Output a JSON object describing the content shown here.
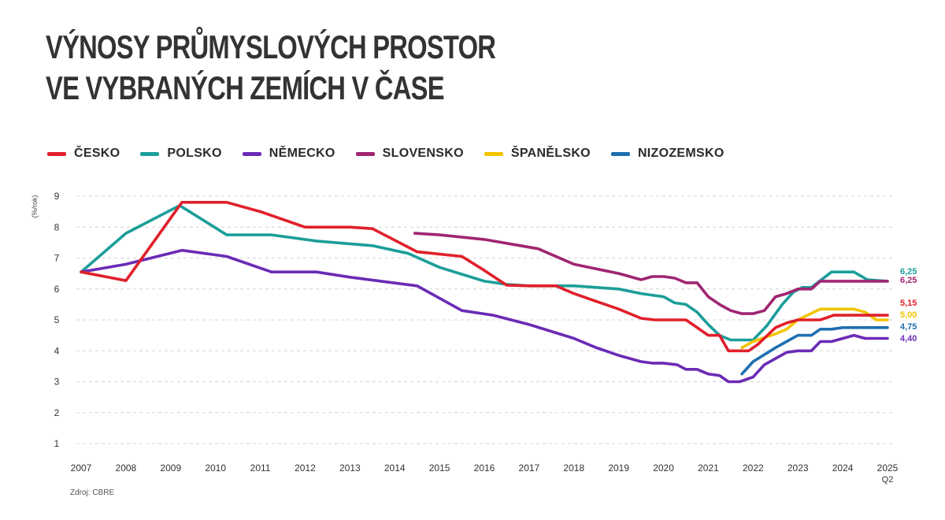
{
  "title": {
    "line1": "VÝNOSY PRŮMYSLOVÝCH PROSTOR",
    "line2": "VE VYBRANÝCH ZEMÍCH V ČASE"
  },
  "source": "Zdroj: CBRE",
  "chart_data": {
    "type": "line",
    "ylabel": "(%/rok)",
    "ylim": [
      1,
      9
    ],
    "yticks": [
      "1",
      "2",
      "3",
      "4",
      "5",
      "6",
      "7",
      "8",
      "9"
    ],
    "xlim": [
      2007,
      2025
    ],
    "xticks": [
      "2007",
      "2008",
      "2009",
      "2010",
      "2011",
      "2012",
      "2013",
      "2014",
      "2015",
      "2016",
      "2017",
      "2018",
      "2019",
      "2020",
      "2021",
      "2022",
      "2023",
      "2024",
      "2025"
    ],
    "xtick_sub": "Q2",
    "grid": "horizontal-dashed",
    "legend": "top",
    "series": [
      {
        "name": "ČESKO",
        "color": "#e0202b",
        "end_label": "5,15",
        "points": [
          [
            2007,
            6.55
          ],
          [
            2008,
            6.27
          ],
          [
            2009.25,
            8.8
          ],
          [
            2010,
            8.8
          ],
          [
            2010.25,
            8.8
          ],
          [
            2011,
            8.5
          ],
          [
            2012,
            8.0
          ],
          [
            2013,
            8.0
          ],
          [
            2013.5,
            7.95
          ],
          [
            2014.5,
            7.2
          ],
          [
            2015.5,
            7.05
          ],
          [
            2016,
            6.6
          ],
          [
            2016.5,
            6.12
          ],
          [
            2017,
            6.1
          ],
          [
            2017.6,
            6.1
          ],
          [
            2018,
            5.85
          ],
          [
            2018.5,
            5.6
          ],
          [
            2019,
            5.35
          ],
          [
            2019.5,
            5.05
          ],
          [
            2019.8,
            5.0
          ],
          [
            2020.5,
            5.0
          ],
          [
            2021,
            4.5
          ],
          [
            2021.25,
            4.5
          ],
          [
            2021.45,
            4.0
          ],
          [
            2021.9,
            4.0
          ],
          [
            2022.1,
            4.2
          ],
          [
            2022.5,
            4.75
          ],
          [
            2022.75,
            4.9
          ],
          [
            2023,
            5.0
          ],
          [
            2023.5,
            5.0
          ],
          [
            2023.8,
            5.15
          ],
          [
            2025,
            5.15
          ]
        ]
      },
      {
        "name": "POLSKO",
        "color": "#1b9e9a",
        "end_label": "6,25",
        "points": [
          [
            2007,
            6.55
          ],
          [
            2008,
            7.8
          ],
          [
            2009.2,
            8.7
          ],
          [
            2010.25,
            7.75
          ],
          [
            2011.25,
            7.75
          ],
          [
            2012.25,
            7.55
          ],
          [
            2013.5,
            7.4
          ],
          [
            2014.3,
            7.15
          ],
          [
            2015,
            6.7
          ],
          [
            2016,
            6.25
          ],
          [
            2016.5,
            6.15
          ],
          [
            2017,
            6.1
          ],
          [
            2018,
            6.1
          ],
          [
            2019,
            6.0
          ],
          [
            2019.5,
            5.85
          ],
          [
            2020,
            5.75
          ],
          [
            2020.25,
            5.55
          ],
          [
            2020.5,
            5.5
          ],
          [
            2020.75,
            5.25
          ],
          [
            2021,
            4.85
          ],
          [
            2021.25,
            4.5
          ],
          [
            2021.5,
            4.35
          ],
          [
            2021.75,
            4.35
          ],
          [
            2022,
            4.35
          ],
          [
            2022.3,
            4.8
          ],
          [
            2022.65,
            5.5
          ],
          [
            2022.9,
            5.9
          ],
          [
            2023.1,
            6.05
          ],
          [
            2023.3,
            6.05
          ],
          [
            2023.75,
            6.55
          ],
          [
            2024.25,
            6.55
          ],
          [
            2024.55,
            6.3
          ],
          [
            2025,
            6.25
          ]
        ]
      },
      {
        "name": "NĚMECKO",
        "color": "#6b2bb5",
        "end_label": "4,40",
        "points": [
          [
            2007,
            6.55
          ],
          [
            2008,
            6.8
          ],
          [
            2009.25,
            7.25
          ],
          [
            2010.25,
            7.05
          ],
          [
            2011.25,
            6.55
          ],
          [
            2012.25,
            6.55
          ],
          [
            2013,
            6.38
          ],
          [
            2014.5,
            6.1
          ],
          [
            2015.5,
            5.3
          ],
          [
            2016.2,
            5.15
          ],
          [
            2017,
            4.85
          ],
          [
            2018,
            4.4
          ],
          [
            2018.5,
            4.1
          ],
          [
            2019,
            3.85
          ],
          [
            2019.5,
            3.65
          ],
          [
            2019.75,
            3.6
          ],
          [
            2020,
            3.6
          ],
          [
            2020.3,
            3.55
          ],
          [
            2020.5,
            3.4
          ],
          [
            2020.75,
            3.4
          ],
          [
            2021,
            3.25
          ],
          [
            2021.25,
            3.2
          ],
          [
            2021.45,
            3.0
          ],
          [
            2021.7,
            3.0
          ],
          [
            2022,
            3.15
          ],
          [
            2022.25,
            3.55
          ],
          [
            2022.5,
            3.75
          ],
          [
            2022.75,
            3.95
          ],
          [
            2023,
            4.0
          ],
          [
            2023.3,
            4.0
          ],
          [
            2023.5,
            4.3
          ],
          [
            2023.75,
            4.3
          ],
          [
            2024.25,
            4.5
          ],
          [
            2024.5,
            4.4
          ],
          [
            2025,
            4.4
          ]
        ]
      },
      {
        "name": "SLOVENSKO",
        "color": "#a02571",
        "end_label": "6,25",
        "points": [
          [
            2014.45,
            7.8
          ],
          [
            2015,
            7.75
          ],
          [
            2016,
            7.6
          ],
          [
            2016.6,
            7.45
          ],
          [
            2017.2,
            7.3
          ],
          [
            2018,
            6.8
          ],
          [
            2019,
            6.5
          ],
          [
            2019.5,
            6.3
          ],
          [
            2019.75,
            6.4
          ],
          [
            2020,
            6.4
          ],
          [
            2020.25,
            6.35
          ],
          [
            2020.5,
            6.2
          ],
          [
            2020.75,
            6.2
          ],
          [
            2021,
            5.75
          ],
          [
            2021.25,
            5.5
          ],
          [
            2021.5,
            5.3
          ],
          [
            2021.75,
            5.2
          ],
          [
            2022,
            5.2
          ],
          [
            2022.25,
            5.3
          ],
          [
            2022.5,
            5.75
          ],
          [
            2022.75,
            5.85
          ],
          [
            2023,
            6.0
          ],
          [
            2023.3,
            6.0
          ],
          [
            2023.5,
            6.25
          ],
          [
            2025,
            6.25
          ]
        ]
      },
      {
        "name": "ŠPANĚLSKO",
        "color": "#f2c500",
        "end_label": "5,00",
        "points": [
          [
            2021.75,
            4.1
          ],
          [
            2022,
            4.3
          ],
          [
            2022.5,
            4.55
          ],
          [
            2022.75,
            4.7
          ],
          [
            2023,
            5.0
          ],
          [
            2023.5,
            5.35
          ],
          [
            2024,
            5.35
          ],
          [
            2024.25,
            5.35
          ],
          [
            2024.5,
            5.25
          ],
          [
            2024.75,
            5.0
          ],
          [
            2025,
            5.0
          ]
        ]
      },
      {
        "name": "NIZOZEMSKO",
        "color": "#1f6fb0",
        "end_label": "4,75",
        "points": [
          [
            2021.75,
            3.25
          ],
          [
            2022,
            3.65
          ],
          [
            2022.5,
            4.1
          ],
          [
            2023,
            4.5
          ],
          [
            2023.3,
            4.5
          ],
          [
            2023.5,
            4.7
          ],
          [
            2023.75,
            4.7
          ],
          [
            2024,
            4.75
          ],
          [
            2025,
            4.75
          ]
        ]
      }
    ]
  }
}
